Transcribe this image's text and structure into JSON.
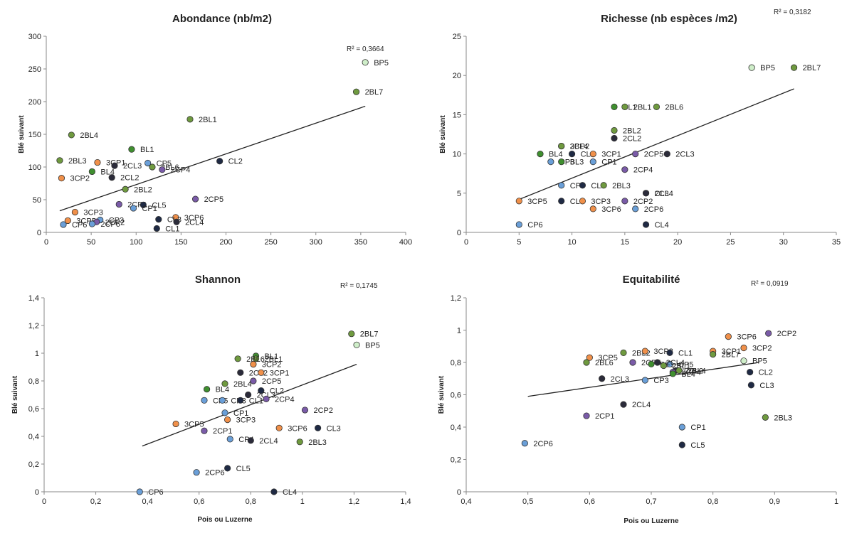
{
  "colors": {
    "BL": "#3f8f2f",
    "CL": "#1f2a44",
    "CP": "#6a9fd8",
    "BP": "#cfeec9",
    "3CP": "#f0904a",
    "2CP": "#7a5ba8",
    "2BL": "#6f9a3f",
    "2CL": "#2b2b3a"
  },
  "chart_data": [
    {
      "type": "scatter",
      "title": "Abondance (nb/m2)",
      "r2": "R² = 0,3664",
      "xlabel": "",
      "ylabel": "Blé suivant",
      "xlim": [
        0,
        400
      ],
      "ylim": [
        0,
        300
      ],
      "xticks": [
        "0",
        "50",
        "100",
        "150",
        "200",
        "250",
        "300",
        "350",
        "400"
      ],
      "yticks": [
        "0",
        "50",
        "100",
        "150",
        "200",
        "250",
        "300"
      ],
      "trend": [
        [
          15,
          33
        ],
        [
          355,
          193
        ]
      ],
      "points": [
        {
          "label": "BP5",
          "x": 355,
          "y": 260,
          "g": "BP"
        },
        {
          "label": "2BL7",
          "x": 345,
          "y": 215,
          "g": "2BL"
        },
        {
          "label": "2BL1",
          "x": 160,
          "y": 173,
          "g": "2BL"
        },
        {
          "label": "2BL4",
          "x": 28,
          "y": 149,
          "g": "2BL"
        },
        {
          "label": "BL1",
          "x": 95,
          "y": 127,
          "g": "BL"
        },
        {
          "label": "CL2",
          "x": 193,
          "y": 109,
          "g": "CL"
        },
        {
          "label": "2BL3",
          "x": 15,
          "y": 110,
          "g": "2BL"
        },
        {
          "label": "3CP1",
          "x": 57,
          "y": 107,
          "g": "3CP"
        },
        {
          "label": "CP5",
          "x": 113,
          "y": 106,
          "g": "CP"
        },
        {
          "label": "2CL3",
          "x": 76,
          "y": 102,
          "g": "2CL"
        },
        {
          "label": "2BL6",
          "x": 118,
          "y": 100,
          "g": "2BL"
        },
        {
          "label": "2CP4",
          "x": 129,
          "y": 96,
          "g": "2CP"
        },
        {
          "label": "BL4",
          "x": 51,
          "y": 93,
          "g": "BL"
        },
        {
          "label": "3CP2",
          "x": 17,
          "y": 83,
          "g": "3CP"
        },
        {
          "label": "2CL2",
          "x": 73,
          "y": 84,
          "g": "2CL"
        },
        {
          "label": "2BL2",
          "x": 88,
          "y": 66,
          "g": "2BL"
        },
        {
          "label": "2CP5",
          "x": 166,
          "y": 51,
          "g": "2CP"
        },
        {
          "label": "2CP1",
          "x": 81,
          "y": 43,
          "g": "2CP"
        },
        {
          "label": "CL5",
          "x": 108,
          "y": 42,
          "g": "CL"
        },
        {
          "label": "CP1",
          "x": 97,
          "y": 37,
          "g": "CP"
        },
        {
          "label": "3CP3",
          "x": 32,
          "y": 31,
          "g": "3CP"
        },
        {
          "label": "3CP6",
          "x": 144,
          "y": 23,
          "g": "3CP"
        },
        {
          "label": "CL3",
          "x": 125,
          "y": 20,
          "g": "CL"
        },
        {
          "label": "3CP5",
          "x": 24,
          "y": 18,
          "g": "3CP"
        },
        {
          "label": "CP3",
          "x": 60,
          "y": 19,
          "g": "CP"
        },
        {
          "label": "2CL4",
          "x": 145,
          "y": 16,
          "g": "2CL"
        },
        {
          "label": "2CP2",
          "x": 56,
          "y": 16,
          "g": "2CP"
        },
        {
          "label": "CP6",
          "x": 19,
          "y": 12,
          "g": "CP"
        },
        {
          "label": "2CP6",
          "x": 51,
          "y": 13,
          "g": "CP"
        },
        {
          "label": "CL1",
          "x": 123,
          "y": 6,
          "g": "CL"
        }
      ]
    },
    {
      "type": "scatter",
      "title": "Richesse (nb espèces /m2)",
      "r2": "R² = 0,3182",
      "xlabel": "",
      "ylabel": "Blé suivant",
      "xlim": [
        0,
        35
      ],
      "ylim": [
        0,
        25
      ],
      "xticks": [
        "0",
        "5",
        "10",
        "15",
        "20",
        "25",
        "30",
        "35"
      ],
      "yticks": [
        "0",
        "5",
        "10",
        "15",
        "20",
        "25"
      ],
      "trend": [
        [
          5,
          4.2
        ],
        [
          31,
          18.3
        ]
      ],
      "points": [
        {
          "label": "BP5",
          "x": 27,
          "y": 21,
          "g": "BP"
        },
        {
          "label": "2BL7",
          "x": 31,
          "y": 21,
          "g": "2BL"
        },
        {
          "label": "BL1",
          "x": 14,
          "y": 16,
          "g": "BL"
        },
        {
          "label": "2BL1",
          "x": 15,
          "y": 16,
          "g": "2BL"
        },
        {
          "label": "2BL6",
          "x": 18,
          "y": 16,
          "g": "2BL"
        },
        {
          "label": "2BL2",
          "x": 14,
          "y": 13,
          "g": "2BL"
        },
        {
          "label": "2CL2",
          "x": 14,
          "y": 12,
          "g": "2CL"
        },
        {
          "label": "3CP2",
          "x": 9,
          "y": 11,
          "g": "3CP"
        },
        {
          "label": "2BL4",
          "x": 9,
          "y": 11,
          "g": "2BL"
        },
        {
          "label": "BL4",
          "x": 7,
          "y": 10,
          "g": "BL"
        },
        {
          "label": "CL2",
          "x": 10,
          "y": 10,
          "g": "CL"
        },
        {
          "label": "3CP1",
          "x": 12,
          "y": 10,
          "g": "3CP"
        },
        {
          "label": "2CP5",
          "x": 16,
          "y": 10,
          "g": "2CP"
        },
        {
          "label": "2CL3",
          "x": 19,
          "y": 10,
          "g": "2CL"
        },
        {
          "label": "CP3",
          "x": 8,
          "y": 9,
          "g": "CP"
        },
        {
          "label": "BL3",
          "x": 9,
          "y": 9,
          "g": "BL"
        },
        {
          "label": "CP1",
          "x": 12,
          "y": 9,
          "g": "CP"
        },
        {
          "label": "2CP4",
          "x": 15,
          "y": 8,
          "g": "2CP"
        },
        {
          "label": "CP5",
          "x": 9,
          "y": 6,
          "g": "CP"
        },
        {
          "label": "CL1",
          "x": 11,
          "y": 6,
          "g": "CL"
        },
        {
          "label": "2BL3",
          "x": 13,
          "y": 6,
          "g": "2BL"
        },
        {
          "label": "CL3",
          "x": 17,
          "y": 5,
          "g": "CL"
        },
        {
          "label": "2CL4",
          "x": 17,
          "y": 5,
          "g": "2CL"
        },
        {
          "label": "3CP5",
          "x": 5,
          "y": 4,
          "g": "3CP"
        },
        {
          "label": "CL5",
          "x": 9,
          "y": 4,
          "g": "CL"
        },
        {
          "label": "3CP3",
          "x": 11,
          "y": 4,
          "g": "3CP"
        },
        {
          "label": "2CP2",
          "x": 15,
          "y": 4,
          "g": "2CP"
        },
        {
          "label": "3CP6",
          "x": 12,
          "y": 3,
          "g": "3CP"
        },
        {
          "label": "2CP6",
          "x": 16,
          "y": 3,
          "g": "CP"
        },
        {
          "label": "CP6",
          "x": 5,
          "y": 1,
          "g": "CP"
        },
        {
          "label": "CL4",
          "x": 17,
          "y": 1,
          "g": "CL"
        }
      ]
    },
    {
      "type": "scatter",
      "title": "Shannon",
      "r2": "R² = 0,1745",
      "xlabel": "Pois ou Luzerne",
      "ylabel": "Blé suivant",
      "xlim": [
        0,
        1.4
      ],
      "ylim": [
        0,
        1.4
      ],
      "xticks": [
        "0",
        "0,2",
        "0,4",
        "0,6",
        "0,8",
        "1",
        "1,2",
        "1,4"
      ],
      "yticks": [
        "0",
        "0,2",
        "0,4",
        "0,6",
        "0,8",
        "1",
        "1,2",
        "1,4"
      ],
      "trend": [
        [
          0.38,
          0.33
        ],
        [
          1.21,
          0.92
        ]
      ],
      "points": [
        {
          "label": "2BL7",
          "x": 1.19,
          "y": 1.14,
          "g": "2BL"
        },
        {
          "label": "BP5",
          "x": 1.21,
          "y": 1.06,
          "g": "BP"
        },
        {
          "label": "BL1",
          "x": 0.82,
          "y": 0.98,
          "g": "BL"
        },
        {
          "label": "2BL1",
          "x": 0.82,
          "y": 0.96,
          "g": "2BL"
        },
        {
          "label": "2BL6",
          "x": 0.75,
          "y": 0.96,
          "g": "2BL"
        },
        {
          "label": "3CP2",
          "x": 0.81,
          "y": 0.92,
          "g": "3CP"
        },
        {
          "label": "2CL2",
          "x": 0.76,
          "y": 0.86,
          "g": "2CL"
        },
        {
          "label": "3CP1",
          "x": 0.84,
          "y": 0.86,
          "g": "3CP"
        },
        {
          "label": "2CP5",
          "x": 0.81,
          "y": 0.8,
          "g": "2CP"
        },
        {
          "label": "2BL4",
          "x": 0.7,
          "y": 0.78,
          "g": "2BL"
        },
        {
          "label": "BL4",
          "x": 0.63,
          "y": 0.74,
          "g": "BL"
        },
        {
          "label": "CL2",
          "x": 0.84,
          "y": 0.73,
          "g": "CL"
        },
        {
          "label": "2CL3",
          "x": 0.79,
          "y": 0.7,
          "g": "2CL"
        },
        {
          "label": "2CP4",
          "x": 0.86,
          "y": 0.67,
          "g": "2CP"
        },
        {
          "label": "CP5",
          "x": 0.62,
          "y": 0.66,
          "g": "CP"
        },
        {
          "label": "CP3",
          "x": 0.69,
          "y": 0.66,
          "g": "CP"
        },
        {
          "label": "CL1",
          "x": 0.76,
          "y": 0.66,
          "g": "CL"
        },
        {
          "label": "2CP2",
          "x": 1.01,
          "y": 0.59,
          "g": "2CP"
        },
        {
          "label": "CP1",
          "x": 0.7,
          "y": 0.57,
          "g": "CP"
        },
        {
          "label": "3CP3",
          "x": 0.71,
          "y": 0.52,
          "g": "3CP"
        },
        {
          "label": "3CP5",
          "x": 0.51,
          "y": 0.49,
          "g": "3CP"
        },
        {
          "label": "3CP6",
          "x": 0.91,
          "y": 0.46,
          "g": "3CP"
        },
        {
          "label": "CL3",
          "x": 1.06,
          "y": 0.46,
          "g": "CL"
        },
        {
          "label": "2CP1",
          "x": 0.62,
          "y": 0.44,
          "g": "2CP"
        },
        {
          "label": "CP4",
          "x": 0.72,
          "y": 0.38,
          "g": "CP"
        },
        {
          "label": "2CL4",
          "x": 0.8,
          "y": 0.37,
          "g": "2CL"
        },
        {
          "label": "2BL3",
          "x": 0.99,
          "y": 0.36,
          "g": "2BL"
        },
        {
          "label": "CL5",
          "x": 0.71,
          "y": 0.17,
          "g": "CL"
        },
        {
          "label": "2CP6",
          "x": 0.59,
          "y": 0.14,
          "g": "CP"
        },
        {
          "label": "CP6",
          "x": 0.37,
          "y": 0.0,
          "g": "CP"
        },
        {
          "label": "CL4",
          "x": 0.89,
          "y": 0.0,
          "g": "CL"
        }
      ]
    },
    {
      "type": "scatter",
      "title": "Equitabilité",
      "r2": "R² = 0,0919",
      "xlabel": "Pois ou Luzerne",
      "ylabel": "Blé suivant",
      "xlim": [
        0.4,
        1
      ],
      "ylim": [
        0,
        1.2
      ],
      "xticks": [
        "0,4",
        "0,5",
        "0,6",
        "0,7",
        "0,8",
        "0,9",
        "1"
      ],
      "yticks": [
        "0",
        "0,2",
        "0,4",
        "0,6",
        "0,8",
        "1",
        "1,2"
      ],
      "trend": [
        [
          0.5,
          0.59
        ],
        [
          0.875,
          0.8
        ]
      ],
      "points": [
        {
          "label": "2CP2",
          "x": 0.89,
          "y": 0.98,
          "g": "2CP"
        },
        {
          "label": "3CP6",
          "x": 0.825,
          "y": 0.96,
          "g": "3CP"
        },
        {
          "label": "3CP2",
          "x": 0.85,
          "y": 0.89,
          "g": "3CP"
        },
        {
          "label": "3CP1",
          "x": 0.8,
          "y": 0.87,
          "g": "3CP"
        },
        {
          "label": "2BL7",
          "x": 0.8,
          "y": 0.85,
          "g": "2BL"
        },
        {
          "label": "2BL2",
          "x": 0.655,
          "y": 0.86,
          "g": "2BL"
        },
        {
          "label": "3CP3",
          "x": 0.69,
          "y": 0.87,
          "g": "3CP"
        },
        {
          "label": "CL1",
          "x": 0.73,
          "y": 0.86,
          "g": "CL"
        },
        {
          "label": "3CP5",
          "x": 0.6,
          "y": 0.83,
          "g": "3CP"
        },
        {
          "label": "2BL6",
          "x": 0.595,
          "y": 0.8,
          "g": "2BL"
        },
        {
          "label": "BP5",
          "x": 0.85,
          "y": 0.81,
          "g": "BP"
        },
        {
          "label": "2CP5",
          "x": 0.67,
          "y": 0.8,
          "g": "2CP"
        },
        {
          "label": "BL1",
          "x": 0.7,
          "y": 0.79,
          "g": "BL"
        },
        {
          "label": "CP5",
          "x": 0.73,
          "y": 0.79,
          "g": "CP"
        },
        {
          "label": "2CL4",
          "x": 0.71,
          "y": 0.8,
          "g": "2CL"
        },
        {
          "label": "2BL1",
          "x": 0.72,
          "y": 0.78,
          "g": "2BL"
        },
        {
          "label": "2CL2",
          "x": 0.74,
          "y": 0.75,
          "g": "2CL"
        },
        {
          "label": "2CP4",
          "x": 0.735,
          "y": 0.74,
          "g": "2CP"
        },
        {
          "label": "2BL4",
          "x": 0.745,
          "y": 0.75,
          "g": "2BL"
        },
        {
          "label": "CL2",
          "x": 0.86,
          "y": 0.74,
          "g": "CL"
        },
        {
          "label": "2CL3",
          "x": 0.62,
          "y": 0.7,
          "g": "2CL"
        },
        {
          "label": "CP3",
          "x": 0.69,
          "y": 0.69,
          "g": "CP"
        },
        {
          "label": "BL4",
          "x": 0.735,
          "y": 0.73,
          "g": "BL"
        },
        {
          "label": "CL3",
          "x": 0.862,
          "y": 0.66,
          "g": "CL"
        },
        {
          "label": "2CL4",
          "x": 0.655,
          "y": 0.54,
          "g": "2CL"
        },
        {
          "label": "2CP1",
          "x": 0.595,
          "y": 0.47,
          "g": "2CP"
        },
        {
          "label": "2BL3",
          "x": 0.885,
          "y": 0.46,
          "g": "2BL"
        },
        {
          "label": "CP1",
          "x": 0.75,
          "y": 0.4,
          "g": "CP"
        },
        {
          "label": "CL5",
          "x": 0.75,
          "y": 0.29,
          "g": "CL"
        },
        {
          "label": "2CP6",
          "x": 0.495,
          "y": 0.3,
          "g": "CP"
        }
      ]
    }
  ]
}
